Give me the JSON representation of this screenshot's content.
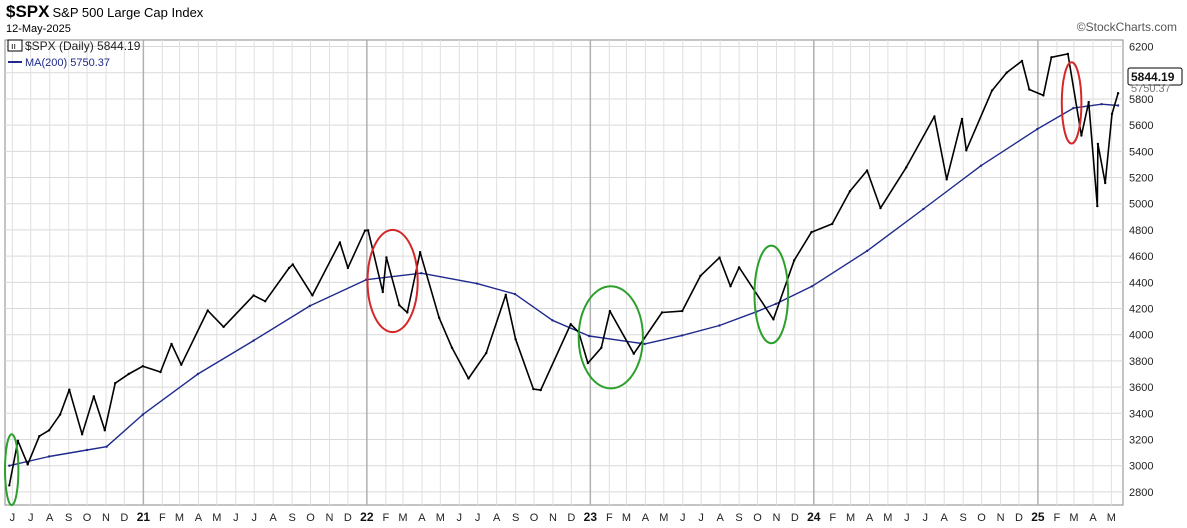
{
  "header": {
    "symbol": "$SPX",
    "name": "S&P 500 Large Cap Index",
    "date": "12-May-2025",
    "brand": "©StockCharts.com"
  },
  "legend": {
    "price_label": "$SPX (Daily) 5844.19",
    "ma_label": "MA(200) 5750.37",
    "price_color": "#000000",
    "ma_color": "#1f2a8c"
  },
  "last_price_label": "5844.19",
  "last_ma_label": "5750.37",
  "chart_data": {
    "type": "line",
    "title": "S&P 500 Large Cap Index",
    "series": [
      {
        "name": "$SPX (Daily)",
        "color": "#000000",
        "points": [
          [
            "2020-05-27",
            2850
          ],
          [
            "2020-06-10",
            3190
          ],
          [
            "2020-06-26",
            3010
          ],
          [
            "2020-07-15",
            3225
          ],
          [
            "2020-07-31",
            3270
          ],
          [
            "2020-08-18",
            3390
          ],
          [
            "2020-09-02",
            3580
          ],
          [
            "2020-09-23",
            3240
          ],
          [
            "2020-10-12",
            3530
          ],
          [
            "2020-10-30",
            3270
          ],
          [
            "2020-11-16",
            3630
          ],
          [
            "2020-12-08",
            3700
          ],
          [
            "2020-12-31",
            3760
          ],
          [
            "2021-01-29",
            3715
          ],
          [
            "2021-02-16",
            3930
          ],
          [
            "2021-03-04",
            3770
          ],
          [
            "2021-04-16",
            4185
          ],
          [
            "2021-05-12",
            4060
          ],
          [
            "2021-06-30",
            4300
          ],
          [
            "2021-07-19",
            4255
          ],
          [
            "2021-08-27",
            4510
          ],
          [
            "2021-09-02",
            4537
          ],
          [
            "2021-10-04",
            4300
          ],
          [
            "2021-11-18",
            4705
          ],
          [
            "2021-12-01",
            4510
          ],
          [
            "2021-12-29",
            4795
          ],
          [
            "2022-01-03",
            4797
          ],
          [
            "2022-01-27",
            4326
          ],
          [
            "2022-02-02",
            4590
          ],
          [
            "2022-02-23",
            4225
          ],
          [
            "2022-03-08",
            4170
          ],
          [
            "2022-03-29",
            4630
          ],
          [
            "2022-04-29",
            4130
          ],
          [
            "2022-05-20",
            3900
          ],
          [
            "2022-06-16",
            3666
          ],
          [
            "2022-07-15",
            3860
          ],
          [
            "2022-08-16",
            4305
          ],
          [
            "2022-09-01",
            3966
          ],
          [
            "2022-09-30",
            3585
          ],
          [
            "2022-10-12",
            3577
          ],
          [
            "2022-11-30",
            4080
          ],
          [
            "2022-12-13",
            4019
          ],
          [
            "2022-12-28",
            3783
          ],
          [
            "2023-01-19",
            3900
          ],
          [
            "2023-02-02",
            4180
          ],
          [
            "2023-03-13",
            3855
          ],
          [
            "2023-04-28",
            4170
          ],
          [
            "2023-05-31",
            4180
          ],
          [
            "2023-06-30",
            4450
          ],
          [
            "2023-07-31",
            4589
          ],
          [
            "2023-08-18",
            4370
          ],
          [
            "2023-09-01",
            4515
          ],
          [
            "2023-10-27",
            4117
          ],
          [
            "2023-11-30",
            4568
          ],
          [
            "2023-12-28",
            4783
          ],
          [
            "2024-01-31",
            4846
          ],
          [
            "2024-02-29",
            5096
          ],
          [
            "2024-03-28",
            5254
          ],
          [
            "2024-04-19",
            4967
          ],
          [
            "2024-05-31",
            5278
          ],
          [
            "2024-07-16",
            5667
          ],
          [
            "2024-08-05",
            5186
          ],
          [
            "2024-08-30",
            5648
          ],
          [
            "2024-09-06",
            5408
          ],
          [
            "2024-10-18",
            5864
          ],
          [
            "2024-11-11",
            6001
          ],
          [
            "2024-12-06",
            6090
          ],
          [
            "2024-12-18",
            5872
          ],
          [
            "2025-01-10",
            5827
          ],
          [
            "2025-01-23",
            6118
          ],
          [
            "2025-02-19",
            6144
          ],
          [
            "2025-03-13",
            5521
          ],
          [
            "2025-03-25",
            5776
          ],
          [
            "2025-04-08",
            4982
          ],
          [
            "2025-04-09",
            5457
          ],
          [
            "2025-04-21",
            5158
          ],
          [
            "2025-05-02",
            5686
          ],
          [
            "2025-05-12",
            5844
          ]
        ]
      },
      {
        "name": "MA(200)",
        "color": "#1f2a8c",
        "points": [
          [
            "2020-05-27",
            3000
          ],
          [
            "2020-07-31",
            3070
          ],
          [
            "2020-10-01",
            3120
          ],
          [
            "2020-11-02",
            3145
          ],
          [
            "2020-12-31",
            3390
          ],
          [
            "2021-03-31",
            3700
          ],
          [
            "2021-06-30",
            3955
          ],
          [
            "2021-09-30",
            4220
          ],
          [
            "2021-12-31",
            4420
          ],
          [
            "2022-03-31",
            4470
          ],
          [
            "2022-06-30",
            4390
          ],
          [
            "2022-08-31",
            4310
          ],
          [
            "2022-10-31",
            4110
          ],
          [
            "2022-12-30",
            3990
          ],
          [
            "2023-03-31",
            3930
          ],
          [
            "2023-05-31",
            3995
          ],
          [
            "2023-07-31",
            4070
          ],
          [
            "2023-09-29",
            4175
          ],
          [
            "2023-10-31",
            4235
          ],
          [
            "2023-12-29",
            4370
          ],
          [
            "2024-03-28",
            4640
          ],
          [
            "2024-06-28",
            4960
          ],
          [
            "2024-09-30",
            5290
          ],
          [
            "2024-12-31",
            5570
          ],
          [
            "2025-02-28",
            5730
          ],
          [
            "2025-04-15",
            5760
          ],
          [
            "2025-05-12",
            5750
          ]
        ]
      }
    ],
    "ylim": [
      2700,
      6250
    ],
    "yticks": [
      2800,
      3000,
      3200,
      3400,
      3600,
      3800,
      4000,
      4200,
      4400,
      4600,
      4800,
      5000,
      5200,
      5400,
      5600,
      5800,
      6000,
      6200
    ],
    "x_start": "2020-05-20",
    "x_end": "2025-05-20",
    "month_ticks": [
      [
        "2020-06-01",
        "J"
      ],
      [
        "2020-07-01",
        "J"
      ],
      [
        "2020-08-01",
        "A"
      ],
      [
        "2020-09-01",
        "S"
      ],
      [
        "2020-10-01",
        "O"
      ],
      [
        "2020-11-01",
        "N"
      ],
      [
        "2020-12-01",
        "D"
      ],
      [
        "2021-01-01",
        "21"
      ],
      [
        "2021-02-01",
        "F"
      ],
      [
        "2021-03-01",
        "M"
      ],
      [
        "2021-04-01",
        "A"
      ],
      [
        "2021-05-01",
        "M"
      ],
      [
        "2021-06-01",
        "J"
      ],
      [
        "2021-07-01",
        "J"
      ],
      [
        "2021-08-01",
        "A"
      ],
      [
        "2021-09-01",
        "S"
      ],
      [
        "2021-10-01",
        "O"
      ],
      [
        "2021-11-01",
        "N"
      ],
      [
        "2021-12-01",
        "D"
      ],
      [
        "2022-01-01",
        "22"
      ],
      [
        "2022-02-01",
        "F"
      ],
      [
        "2022-03-01",
        "M"
      ],
      [
        "2022-04-01",
        "A"
      ],
      [
        "2022-05-01",
        "M"
      ],
      [
        "2022-06-01",
        "J"
      ],
      [
        "2022-07-01",
        "J"
      ],
      [
        "2022-08-01",
        "A"
      ],
      [
        "2022-09-01",
        "S"
      ],
      [
        "2022-10-01",
        "O"
      ],
      [
        "2022-11-01",
        "N"
      ],
      [
        "2022-12-01",
        "D"
      ],
      [
        "2023-01-01",
        "23"
      ],
      [
        "2023-02-01",
        "F"
      ],
      [
        "2023-03-01",
        "M"
      ],
      [
        "2023-04-01",
        "A"
      ],
      [
        "2023-05-01",
        "M"
      ],
      [
        "2023-06-01",
        "J"
      ],
      [
        "2023-07-01",
        "J"
      ],
      [
        "2023-08-01",
        "A"
      ],
      [
        "2023-09-01",
        "S"
      ],
      [
        "2023-10-01",
        "O"
      ],
      [
        "2023-11-01",
        "N"
      ],
      [
        "2023-12-01",
        "D"
      ],
      [
        "2024-01-01",
        "24"
      ],
      [
        "2024-02-01",
        "F"
      ],
      [
        "2024-03-01",
        "M"
      ],
      [
        "2024-04-01",
        "A"
      ],
      [
        "2024-05-01",
        "M"
      ],
      [
        "2024-06-01",
        "J"
      ],
      [
        "2024-07-01",
        "J"
      ],
      [
        "2024-08-01",
        "A"
      ],
      [
        "2024-09-01",
        "S"
      ],
      [
        "2024-10-01",
        "O"
      ],
      [
        "2024-11-01",
        "N"
      ],
      [
        "2024-12-01",
        "D"
      ],
      [
        "2025-01-01",
        "25"
      ],
      [
        "2025-02-01",
        "F"
      ],
      [
        "2025-03-01",
        "M"
      ],
      [
        "2025-04-01",
        "A"
      ],
      [
        "2025-05-01",
        "M"
      ]
    ],
    "annotations": [
      {
        "type": "ellipse",
        "color": "#2ca02c",
        "x_from": "2020-05-20",
        "x_to": "2020-06-11",
        "y_from": 2700,
        "y_to": 3240
      },
      {
        "type": "ellipse",
        "color": "#d62728",
        "x_from": "2022-01-02",
        "x_to": "2022-03-25",
        "y_from": 4020,
        "y_to": 4800
      },
      {
        "type": "ellipse",
        "color": "#2ca02c",
        "x_from": "2022-12-13",
        "x_to": "2023-03-28",
        "y_from": 3590,
        "y_to": 4370
      },
      {
        "type": "ellipse",
        "color": "#2ca02c",
        "x_from": "2023-09-26",
        "x_to": "2023-11-20",
        "y_from": 3935,
        "y_to": 4680
      },
      {
        "type": "ellipse",
        "color": "#d62728",
        "x_from": "2025-02-09",
        "x_to": "2025-03-13",
        "y_from": 5460,
        "y_to": 6080
      }
    ],
    "grid": true
  }
}
